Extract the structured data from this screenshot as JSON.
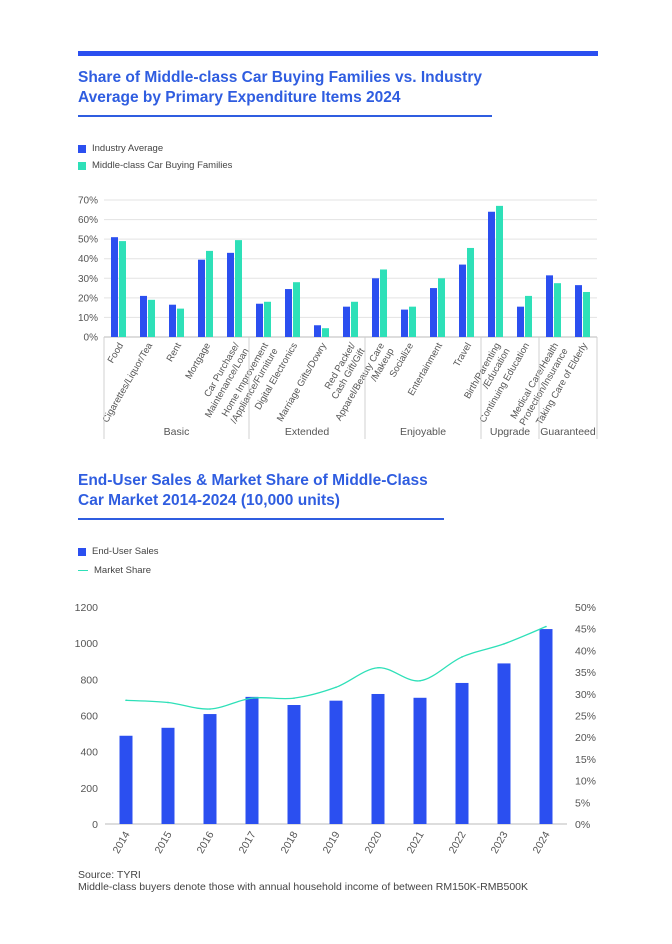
{
  "charts": [
    {
      "title_line1": "Share of Middle-class Car Buying Families vs. Industry",
      "title_line2": "Average by Primary Expenditure Items 2024"
    },
    {
      "title_line1": "End-User Sales & Market Share of Middle-Class",
      "title_line2": "Car Market 2014-2024 (10,000 units)"
    }
  ],
  "colors": {
    "industry": "#2b4ff0",
    "middle": "#2ee0b8",
    "sales": "#2b4ff0",
    "share_line": "#2ee0b8",
    "title": "#2f5de0"
  },
  "footer": {
    "source": "Source: TYRI",
    "note": "Middle-class buyers denote those with annual household income of between RM150K-RMB500K"
  },
  "chart_data": [
    {
      "type": "bar",
      "title": "Share of Middle-class Car Buying Families vs. Industry Average by Primary Expenditure Items 2024",
      "legend_position": "top-left",
      "grid": true,
      "ylim": [
        0,
        70
      ],
      "yticks": [
        "0%",
        "10%",
        "20%",
        "30%",
        "40%",
        "50%",
        "60%",
        "70%"
      ],
      "categories": [
        [
          "Food"
        ],
        [
          "Cigarettes/Liquor/Tea"
        ],
        [
          "Rent"
        ],
        [
          "Mortgage"
        ],
        [
          "Car Purchase/",
          "Maintenance/Loan"
        ],
        [
          "Home Improvement",
          "/Appliance/Furniture"
        ],
        [
          "Digital Electronics"
        ],
        [
          "Marriage Gifts/Dowry"
        ],
        [
          "Red Packet/",
          "Cash Gift/Gift"
        ],
        [
          "Apparel/Beauty Care",
          "/Makeup"
        ],
        [
          "Socialize"
        ],
        [
          "Entertainment"
        ],
        [
          "Travel"
        ],
        [
          "Birth/Parenting",
          "/Education"
        ],
        [
          "Continuing Education"
        ],
        [
          "Medical Care/Health",
          "Protection/Insurance"
        ],
        [
          "Taking Care of Elderly"
        ]
      ],
      "groups": [
        {
          "name": "Basic",
          "start": 0,
          "end": 4
        },
        {
          "name": "Extended",
          "start": 5,
          "end": 8
        },
        {
          "name": "Enjoyable",
          "start": 9,
          "end": 12
        },
        {
          "name": "Upgrade",
          "start": 13,
          "end": 14
        },
        {
          "name": "Guaranteed",
          "start": 15,
          "end": 16
        }
      ],
      "series": [
        {
          "name": "Industry Average",
          "values": [
            51,
            21,
            16.5,
            39.5,
            43,
            17,
            24.5,
            6,
            15.5,
            30,
            14,
            25,
            37,
            64,
            15.5,
            31.5,
            26.5
          ]
        },
        {
          "name": "Middle-class Car Buying Families",
          "values": [
            49,
            19,
            14.5,
            44,
            49.5,
            18,
            28,
            4.5,
            18,
            34.5,
            15.5,
            30,
            45.5,
            67,
            21,
            27.5,
            23
          ]
        }
      ]
    },
    {
      "type": "bar",
      "title": "End-User Sales & Market Share of Middle-Class Car Market 2014-2024 (10,000 units)",
      "legend_position": "top-left",
      "grid": false,
      "x": [
        "2014",
        "2015",
        "2016",
        "2017",
        "2018",
        "2019",
        "2020",
        "2021",
        "2022",
        "2023",
        "2024"
      ],
      "ylim": [
        0,
        1200
      ],
      "yticks": [
        "0",
        "200",
        "400",
        "600",
        "800",
        "1000",
        "1200"
      ],
      "y2lim": [
        0,
        50
      ],
      "y2ticks": [
        "0%",
        "5%",
        "10%",
        "15%",
        "20%",
        "25%",
        "30%",
        "35%",
        "40%",
        "45%",
        "50%"
      ],
      "series": [
        {
          "name": "End-User Sales",
          "type": "bar",
          "axis": "left",
          "values": [
            488,
            532,
            608,
            703,
            658,
            682,
            719,
            698,
            780,
            888,
            1078
          ]
        },
        {
          "name": "Market Share",
          "type": "line",
          "axis": "right",
          "values": [
            28.5,
            28,
            26.5,
            29,
            29,
            31.5,
            36,
            33,
            38.5,
            41.5,
            45.5
          ]
        }
      ]
    }
  ]
}
